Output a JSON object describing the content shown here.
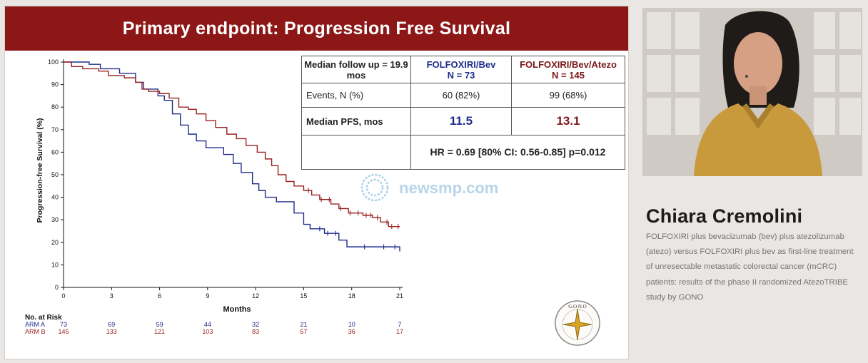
{
  "slide": {
    "title": "Primary endpoint: Progression Free Survival"
  },
  "summary_table": {
    "header_col0": "Median follow up = 19.9 mos",
    "header_arm_a": "FOLFOXIRI/Bev",
    "header_arm_a_n": "N = 73",
    "header_arm_b": "FOLFOXIRI/Bev/Atezo",
    "header_arm_b_n": "N = 145",
    "events_label": "Events, N (%)",
    "events_arm_a": "60 (82%)",
    "events_arm_b": "99 (68%)",
    "median_label": "Median PFS, mos",
    "median_arm_a": "11.5",
    "median_arm_b": "13.1",
    "hr_text": "HR = 0.69 [80% CI: 0.56-0.85] p=0.012"
  },
  "risk_table": {
    "title": "No. at Risk",
    "arm_a_label": "ARM A",
    "arm_b_label": "ARM B",
    "arm_a": [
      "73",
      "69",
      "59",
      "44",
      "32",
      "21",
      "10",
      "7"
    ],
    "arm_b": [
      "145",
      "133",
      "121",
      "103",
      "83",
      "57",
      "36",
      "17"
    ]
  },
  "chart_data": {
    "type": "line",
    "xlabel": "Months",
    "ylabel": "Progression-free Survival (%)",
    "xlim": [
      0,
      21
    ],
    "ylim": [
      0,
      100
    ],
    "x_ticks": [
      "0",
      "3",
      "6",
      "9",
      "12",
      "15",
      "18",
      "21"
    ],
    "y_ticks": [
      "0",
      "10",
      "20",
      "30",
      "40",
      "50",
      "60",
      "70",
      "80",
      "90",
      "100"
    ],
    "grid": false,
    "series": [
      {
        "arm": "ARM A",
        "color": "#1f2d8a",
        "step": true,
        "points": [
          [
            0,
            100
          ],
          [
            1.6,
            99
          ],
          [
            2.3,
            97
          ],
          [
            3.5,
            95
          ],
          [
            4.5,
            91
          ],
          [
            5,
            88
          ],
          [
            5.9,
            85
          ],
          [
            6.3,
            83
          ],
          [
            6.8,
            77
          ],
          [
            7.3,
            72
          ],
          [
            7.8,
            68
          ],
          [
            8.3,
            65
          ],
          [
            8.9,
            62
          ],
          [
            10,
            59
          ],
          [
            10.6,
            55
          ],
          [
            11.1,
            51
          ],
          [
            11.8,
            46
          ],
          [
            12.2,
            43
          ],
          [
            12.6,
            40
          ],
          [
            13.3,
            38
          ],
          [
            14.4,
            33
          ],
          [
            15,
            28
          ],
          [
            15.4,
            26
          ],
          [
            16.3,
            24
          ],
          [
            17.2,
            21
          ],
          [
            17.7,
            18
          ],
          [
            21,
            16
          ]
        ],
        "censor_x": [
          16,
          16.5,
          17,
          18.8,
          20,
          20.7
        ]
      },
      {
        "arm": "ARM B",
        "color": "#9b2121",
        "step": true,
        "points": [
          [
            0,
            100
          ],
          [
            0.5,
            98
          ],
          [
            1.2,
            97
          ],
          [
            2.2,
            96
          ],
          [
            2.8,
            94
          ],
          [
            3.8,
            93
          ],
          [
            4.5,
            91
          ],
          [
            4.9,
            88
          ],
          [
            5.3,
            87
          ],
          [
            6,
            86
          ],
          [
            6.6,
            84
          ],
          [
            7.2,
            80
          ],
          [
            7.8,
            79
          ],
          [
            8.3,
            77
          ],
          [
            8.9,
            74
          ],
          [
            9.5,
            71
          ],
          [
            10.2,
            68
          ],
          [
            10.8,
            66
          ],
          [
            11.4,
            63
          ],
          [
            12.1,
            60
          ],
          [
            12.6,
            57
          ],
          [
            13,
            54
          ],
          [
            13.4,
            50
          ],
          [
            13.9,
            47
          ],
          [
            14.4,
            45
          ],
          [
            15,
            43
          ],
          [
            15.5,
            41
          ],
          [
            16,
            39
          ],
          [
            16.7,
            37
          ],
          [
            17.2,
            35
          ],
          [
            17.8,
            33
          ],
          [
            18.7,
            32
          ],
          [
            19.3,
            31
          ],
          [
            19.8,
            29
          ],
          [
            20.3,
            27
          ],
          [
            21,
            27
          ]
        ],
        "censor_x": [
          15.3,
          16.1,
          16.6,
          17.3,
          17.9,
          18.4,
          18.9,
          19.2,
          19.6,
          20.2,
          20.5,
          20.9
        ]
      }
    ]
  },
  "watermark": {
    "text": "newsmp.com"
  },
  "logo": {
    "text": "G.O.N.O",
    "icon": "compass-star-logo"
  },
  "speaker": {
    "name": "Chiara Cremolini",
    "talk_title": "FOLFOXIRI plus bevacizumab (bev) plus atezolizumab (atezo) versus FOLFOXIRI plus bev as first-line treatment of unresectable metastatic colorectal cancer (mCRC) patients: results of the phase II randomized AtezoTRIBE study by GONO"
  }
}
